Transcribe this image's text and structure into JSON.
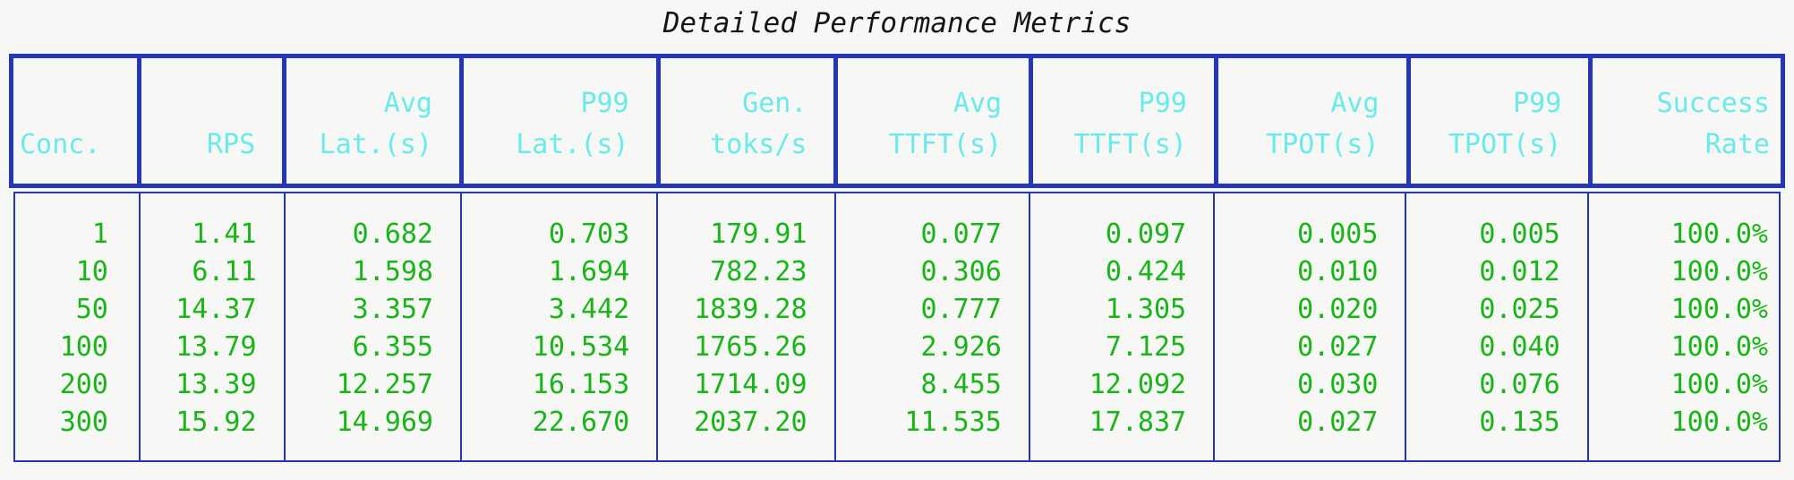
{
  "title": "Detailed Performance Metrics",
  "colors": {
    "border_blue": "#2636b8",
    "header_cyan": "#69ebeb",
    "data_green": "#18b518",
    "background": "#f7f7f5",
    "title_text": "#151515"
  },
  "table": {
    "header_labels": [
      "Conc.",
      "RPS",
      "Avg\nLat.(s)",
      "P99\nLat.(s)",
      "Gen.\ntoks/s",
      "Avg\nTTFT(s)",
      "P99\nTTFT(s)",
      "Avg\nTPOT(s)",
      "P99\nTPOT(s)",
      "Success\nRate"
    ],
    "rows": [
      [
        "1",
        "1.41",
        "0.682",
        "0.703",
        "179.91",
        "0.077",
        "0.097",
        "0.005",
        "0.005",
        "100.0%"
      ],
      [
        "10",
        "6.11",
        "1.598",
        "1.694",
        "782.23",
        "0.306",
        "0.424",
        "0.010",
        "0.012",
        "100.0%"
      ],
      [
        "50",
        "14.37",
        "3.357",
        "3.442",
        "1839.28",
        "0.777",
        "1.305",
        "0.020",
        "0.025",
        "100.0%"
      ],
      [
        "100",
        "13.79",
        "6.355",
        "10.534",
        "1765.26",
        "2.926",
        "7.125",
        "0.027",
        "0.040",
        "100.0%"
      ],
      [
        "200",
        "13.39",
        "12.257",
        "16.153",
        "1714.09",
        "8.455",
        "12.092",
        "0.030",
        "0.076",
        "100.0%"
      ],
      [
        "300",
        "15.92",
        "14.969",
        "22.670",
        "2037.20",
        "11.535",
        "17.837",
        "0.027",
        "0.135",
        "100.0%"
      ]
    ]
  },
  "chart_data": {
    "type": "table",
    "title": "Detailed Performance Metrics",
    "columns": [
      "Conc.",
      "RPS",
      "Avg Lat.(s)",
      "P99 Lat.(s)",
      "Gen. toks/s",
      "Avg TTFT(s)",
      "P99 TTFT(s)",
      "Avg TPOT(s)",
      "P99 TPOT(s)",
      "Success Rate"
    ],
    "rows": [
      [
        1,
        1.41,
        0.682,
        0.703,
        179.91,
        0.077,
        0.097,
        0.005,
        0.005,
        "100.0%"
      ],
      [
        10,
        6.11,
        1.598,
        1.694,
        782.23,
        0.306,
        0.424,
        0.01,
        0.012,
        "100.0%"
      ],
      [
        50,
        14.37,
        3.357,
        3.442,
        1839.28,
        0.777,
        1.305,
        0.02,
        0.025,
        "100.0%"
      ],
      [
        100,
        13.79,
        6.355,
        10.534,
        1765.26,
        2.926,
        7.125,
        0.027,
        0.04,
        "100.0%"
      ],
      [
        200,
        13.39,
        12.257,
        16.153,
        1714.09,
        8.455,
        12.092,
        0.03,
        0.076,
        "100.0%"
      ],
      [
        300,
        15.92,
        14.969,
        22.67,
        2037.2,
        11.535,
        17.837,
        0.027,
        0.135,
        "100.0%"
      ]
    ]
  }
}
